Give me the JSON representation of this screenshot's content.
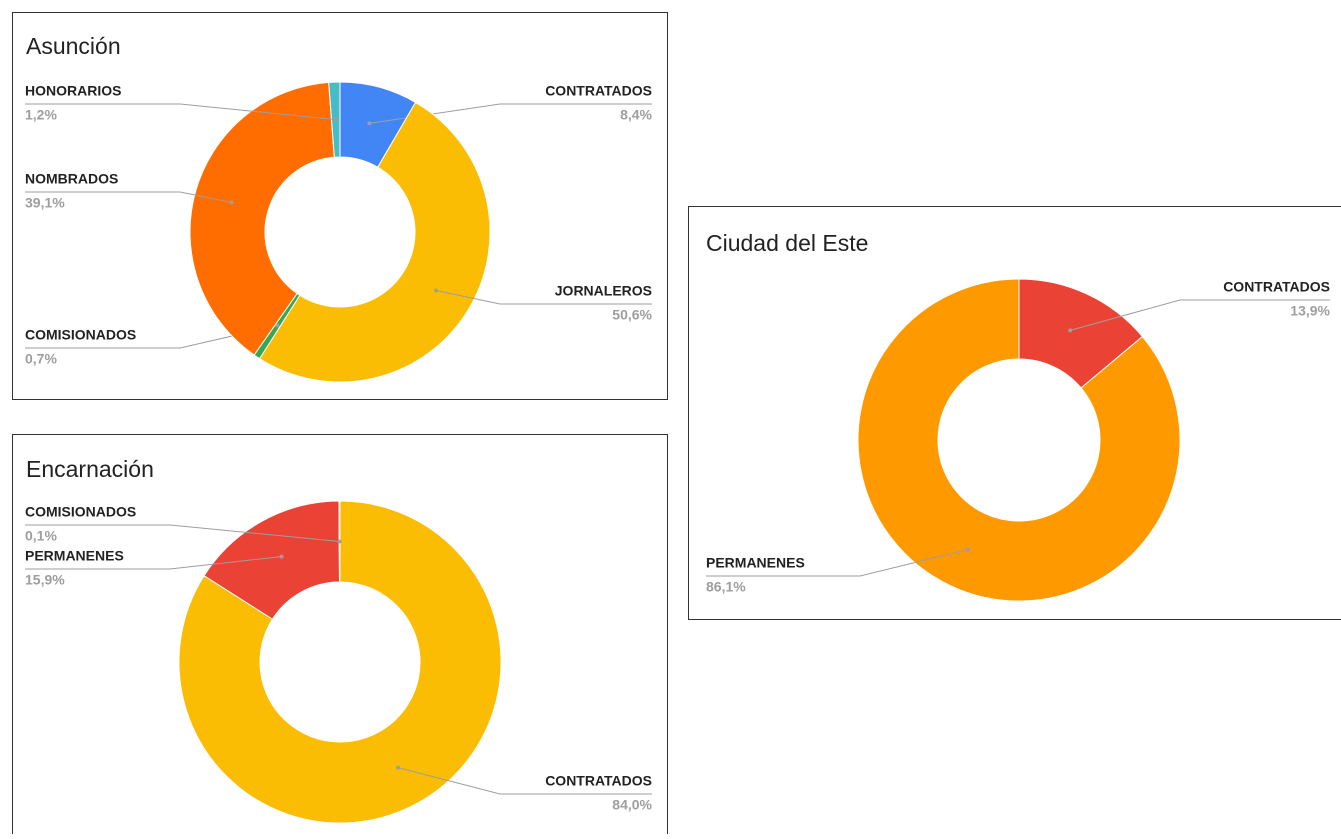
{
  "chart_data": [
    {
      "type": "donut",
      "title": "Asunción",
      "categories": [
        "CONTRATADOS",
        "JORNALEROS",
        "COMISIONADOS",
        "NOMBRADOS",
        "HONORARIOS"
      ],
      "values": [
        8.4,
        50.6,
        0.7,
        39.1,
        1.2
      ],
      "value_labels": [
        "8,4%",
        "50,6%",
        "0,7%",
        "39,1%",
        "1,2%"
      ],
      "colors": [
        "#4285f4",
        "#fbbc04",
        "#34a853",
        "#ff6d01",
        "#46bdc6"
      ]
    },
    {
      "type": "donut",
      "title": "Encarnación",
      "categories": [
        "CONTRATADOS",
        "PERMANENES",
        "COMISIONADOS"
      ],
      "values": [
        84.0,
        15.9,
        0.1
      ],
      "value_labels": [
        "84,0%",
        "15,9%",
        "0,1%"
      ],
      "colors": [
        "#fbbc04",
        "#ea4335",
        "#ff6d01"
      ]
    },
    {
      "type": "donut",
      "title": "Ciudad del Este",
      "categories": [
        "CONTRATADOS",
        "PERMANENES"
      ],
      "values": [
        13.9,
        86.1
      ],
      "value_labels": [
        "13,9%",
        "86,1%"
      ],
      "colors": [
        "#ea4335",
        "#ff9900"
      ]
    }
  ]
}
